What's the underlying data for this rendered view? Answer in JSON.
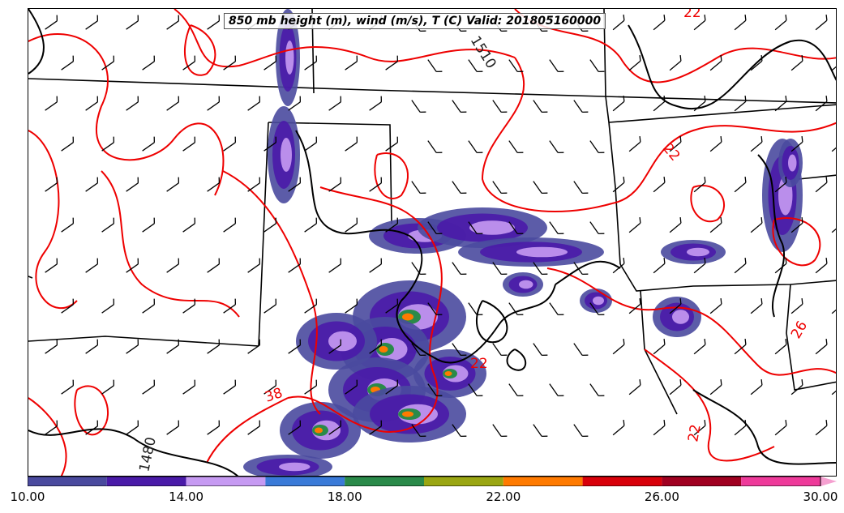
{
  "title": "850 mb height (m), wind (m/s), T (C) Valid: 201805160000",
  "contour_labels": {
    "height_1510": "1510",
    "height_1480": "1480",
    "temp_22_top": "22",
    "temp_22_east": "22",
    "temp_22_mid": "22",
    "temp_22_south": "22",
    "temp_38": "38",
    "temp_26": "26"
  },
  "colorbar": {
    "levels": [
      10,
      12,
      14,
      16,
      18,
      20,
      22,
      24,
      26,
      28,
      30
    ],
    "colors": [
      "#4a4a9e",
      "#4a1aa8",
      "#c69af2",
      "#3a7ad8",
      "#2a8a4a",
      "#9aa612",
      "#ff7a00",
      "#d8000a",
      "#a00020",
      "#ee3a9a",
      "#f5a0d0"
    ],
    "tick_labels": [
      "10.00",
      "14.00",
      "18.00",
      "22.00",
      "26.00",
      "30.00"
    ],
    "tick_values": [
      10,
      14,
      18,
      22,
      26,
      30
    ]
  },
  "colors": {
    "height_contour": "#000000",
    "temp_contour": "#ee0000",
    "state_border": "#000000"
  }
}
